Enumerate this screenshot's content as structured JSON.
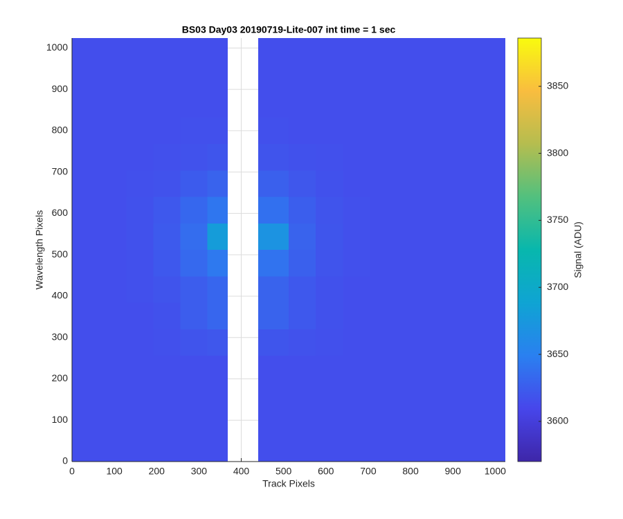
{
  "chart_data": {
    "type": "heatmap",
    "title": "BS03 Day03 20190719-Lite-007 int time = 1 sec",
    "xlabel": "Track Pixels",
    "ylabel": "Wavelength Pixels",
    "colorbar_label": "Signal (ADU)",
    "xlim": [
      0,
      1024
    ],
    "ylim": [
      0,
      1024
    ],
    "xticks": [
      0,
      100,
      200,
      300,
      400,
      500,
      600,
      700,
      800,
      900,
      1000
    ],
    "yticks": [
      0,
      100,
      200,
      300,
      400,
      500,
      600,
      700,
      800,
      900,
      1000
    ],
    "grid": true,
    "x_edges": [
      0,
      64,
      128,
      192,
      256,
      320,
      368,
      440,
      512,
      576,
      640,
      704,
      768,
      832,
      896,
      960,
      1024
    ],
    "y_edges": [
      0,
      64,
      128,
      192,
      256,
      320,
      384,
      448,
      512,
      576,
      640,
      704,
      768,
      832,
      896,
      960,
      1024
    ],
    "z": [
      [
        3615,
        3615,
        3615,
        3615,
        3615,
        3615,
        null,
        3615,
        3615,
        3615,
        3615,
        3615,
        3615,
        3615,
        3615,
        3615
      ],
      [
        3615,
        3615,
        3615,
        3615,
        3615,
        3615,
        null,
        3615,
        3615,
        3615,
        3615,
        3615,
        3615,
        3615,
        3615,
        3615
      ],
      [
        3615,
        3615,
        3615,
        3615,
        3615,
        3615,
        null,
        3615,
        3615,
        3615,
        3615,
        3615,
        3615,
        3615,
        3615,
        3615
      ],
      [
        3615,
        3615,
        3615,
        3615,
        3615,
        3615,
        null,
        3615,
        3615,
        3615,
        3615,
        3615,
        3615,
        3615,
        3615,
        3615
      ],
      [
        3615,
        3615,
        3615,
        3616,
        3619,
        3621,
        null,
        3620,
        3618,
        3616,
        3615,
        3615,
        3615,
        3615,
        3615,
        3615
      ],
      [
        3615,
        3615,
        3615,
        3617,
        3625,
        3631,
        null,
        3629,
        3622,
        3617,
        3615,
        3615,
        3615,
        3615,
        3615,
        3615
      ],
      [
        3615,
        3615,
        3616,
        3619,
        3625,
        3631,
        null,
        3629,
        3622,
        3617,
        3615,
        3615,
        3615,
        3615,
        3615,
        3615
      ],
      [
        3615,
        3615,
        3616,
        3622,
        3633,
        3644,
        null,
        3640,
        3627,
        3619,
        3616,
        3615,
        3615,
        3615,
        3615,
        3615
      ],
      [
        3615,
        3615,
        3617,
        3623,
        3636,
        3680,
        null,
        3670,
        3629,
        3620,
        3616,
        3615,
        3615,
        3615,
        3615,
        3615
      ],
      [
        3615,
        3615,
        3617,
        3622,
        3632,
        3642,
        null,
        3638,
        3626,
        3619,
        3616,
        3615,
        3615,
        3615,
        3615,
        3615
      ],
      [
        3615,
        3615,
        3616,
        3618,
        3624,
        3629,
        null,
        3627,
        3621,
        3617,
        3615,
        3615,
        3615,
        3615,
        3615,
        3615
      ],
      [
        3615,
        3615,
        3615,
        3616,
        3618,
        3620,
        null,
        3619,
        3617,
        3616,
        3615,
        3615,
        3615,
        3615,
        3615,
        3615
      ],
      [
        3615,
        3615,
        3615,
        3615,
        3616,
        3616,
        null,
        3616,
        3615,
        3615,
        3615,
        3615,
        3615,
        3615,
        3615,
        3615
      ],
      [
        3615,
        3615,
        3615,
        3615,
        3615,
        3615,
        null,
        3615,
        3615,
        3615,
        3615,
        3615,
        3615,
        3615,
        3615,
        3615
      ],
      [
        3615,
        3615,
        3615,
        3615,
        3615,
        3615,
        null,
        3615,
        3615,
        3615,
        3615,
        3615,
        3615,
        3615,
        3615,
        3615
      ],
      [
        3615,
        3615,
        3615,
        3615,
        3615,
        3615,
        null,
        3615,
        3615,
        3615,
        3615,
        3615,
        3615,
        3615,
        3615,
        3615
      ]
    ],
    "clim": [
      3570,
      3886
    ],
    "cticks": [
      3600,
      3650,
      3700,
      3750,
      3800,
      3850
    ],
    "colormap": [
      "#3e26a8",
      "#4746eb",
      "#2a80f0",
      "#0fa4d3",
      "#08b7ad",
      "#52c07e",
      "#b5bd4f",
      "#f9bd3f",
      "#f9fb0e"
    ]
  }
}
